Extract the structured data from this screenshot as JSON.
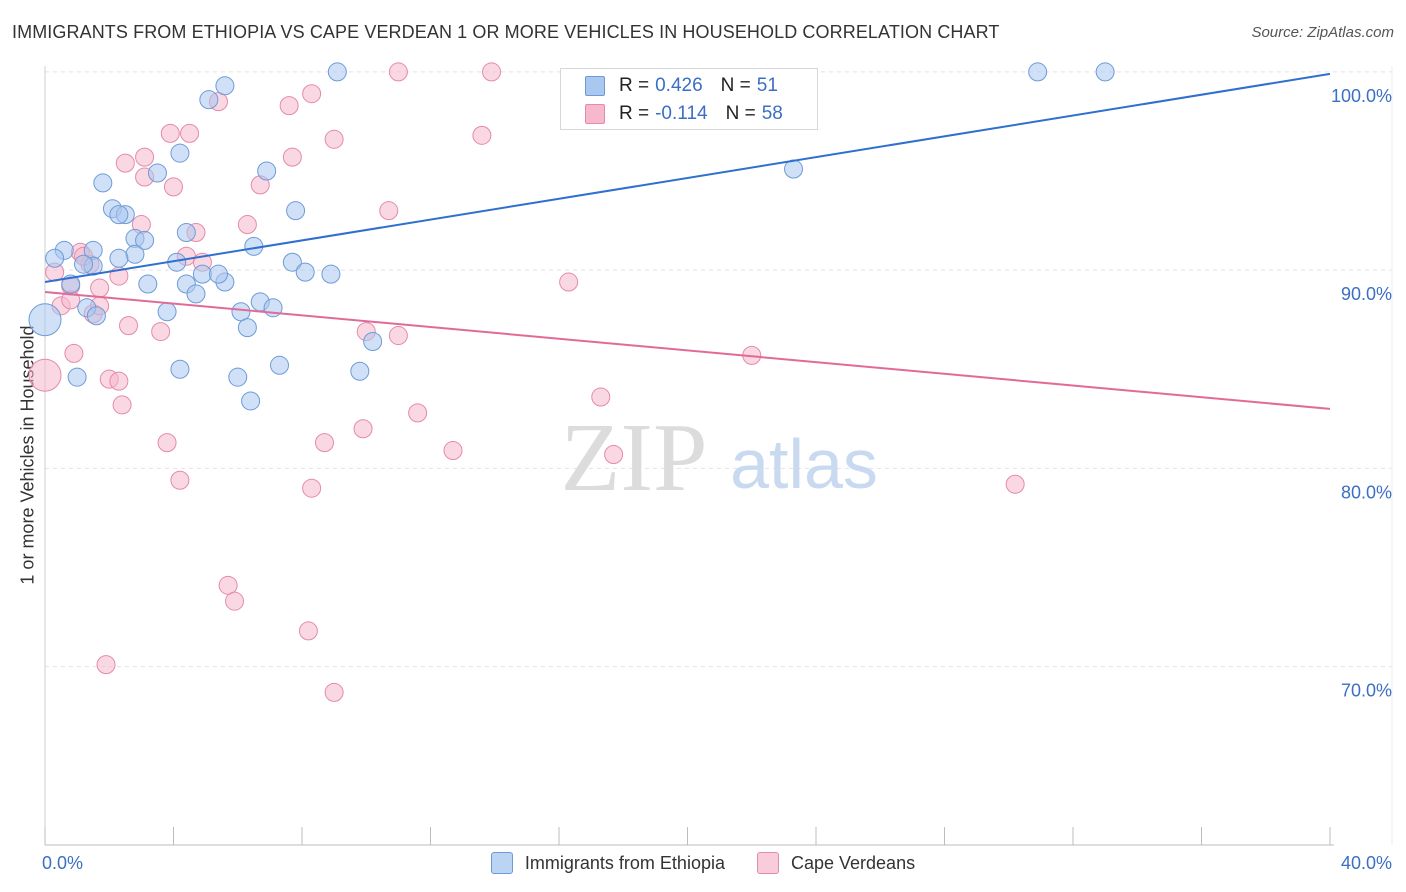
{
  "title": "IMMIGRANTS FROM ETHIOPIA VS CAPE VERDEAN 1 OR MORE VEHICLES IN HOUSEHOLD CORRELATION CHART",
  "source": "Source: ZipAtlas.com",
  "watermark": {
    "zip": "ZIP",
    "atlas": "atlas"
  },
  "colors": {
    "blue_fill": "#a9c7ef",
    "blue_stroke": "#6e9bd8",
    "blue_line": "#2f6fcf",
    "pink_fill": "#f5b8cc",
    "pink_stroke": "#e58aaa",
    "pink_line": "#e06b98",
    "axis_text": "#3b6fc4",
    "grid": "#e2e2e2"
  },
  "stats": {
    "r_label": "R =",
    "n_label": "N =",
    "blue": {
      "r": "0.426",
      "n": "51"
    },
    "pink": {
      "r": "-0.114",
      "n": "58"
    }
  },
  "legend": {
    "blue": "Immigrants from Ethiopia",
    "pink": "Cape Verdeans"
  },
  "chart_data": {
    "type": "scatter",
    "title": "IMMIGRANTS FROM ETHIOPIA VS CAPE VERDEAN 1 OR MORE VEHICLES IN HOUSEHOLD CORRELATION CHART",
    "xlabel": "",
    "ylabel": "1 or more Vehicles in Household",
    "xlim": [
      0,
      40
    ],
    "ylim": [
      61,
      100.5
    ],
    "x_tick_labels": [
      "0.0%",
      "40.0%"
    ],
    "y_ticks": [
      100,
      90,
      80,
      70
    ],
    "y_tick_labels": [
      "100.0%",
      "90.0%",
      "80.0%",
      "70.0%"
    ],
    "grid": true,
    "legend_position": "bottom-center",
    "series": [
      {
        "name": "Immigrants from Ethiopia",
        "color": "#a9c7ef",
        "trend": {
          "x": [
            0,
            40
          ],
          "y": [
            89.4,
            99.9
          ]
        },
        "points": [
          [
            0.6,
            91.0
          ],
          [
            0.3,
            90.6
          ],
          [
            1.5,
            91.0
          ],
          [
            1.5,
            90.2
          ],
          [
            1.2,
            90.3
          ],
          [
            0.8,
            89.3
          ],
          [
            0,
            87.5
          ],
          [
            1.3,
            88.1
          ],
          [
            1.6,
            87.7
          ],
          [
            1.0,
            84.6
          ],
          [
            1.8,
            94.4
          ],
          [
            2.1,
            93.1
          ],
          [
            2.5,
            92.8
          ],
          [
            2.3,
            92.8
          ],
          [
            2.8,
            91.6
          ],
          [
            3.1,
            91.5
          ],
          [
            2.8,
            90.8
          ],
          [
            2.3,
            90.6
          ],
          [
            3.2,
            89.3
          ],
          [
            3.5,
            94.9
          ],
          [
            4.2,
            95.9
          ],
          [
            4.1,
            90.4
          ],
          [
            4.4,
            91.9
          ],
          [
            4.9,
            89.8
          ],
          [
            4.4,
            89.3
          ],
          [
            4.7,
            88.8
          ],
          [
            3.8,
            87.9
          ],
          [
            5.1,
            98.6
          ],
          [
            5.6,
            99.3
          ],
          [
            5.6,
            89.4
          ],
          [
            5.4,
            89.8
          ],
          [
            6.1,
            87.9
          ],
          [
            6.5,
            91.2
          ],
          [
            6.9,
            95.0
          ],
          [
            6.7,
            88.4
          ],
          [
            7.1,
            88.1
          ],
          [
            7.7,
            90.4
          ],
          [
            8.1,
            89.9
          ],
          [
            7.8,
            93.0
          ],
          [
            8.9,
            89.8
          ],
          [
            9.1,
            100.0
          ],
          [
            6.3,
            87.1
          ],
          [
            6.0,
            84.6
          ],
          [
            6.4,
            83.4
          ],
          [
            7.3,
            85.2
          ],
          [
            9.8,
            84.9
          ],
          [
            10.2,
            86.4
          ],
          [
            23.3,
            95.1
          ],
          [
            30.9,
            100.0
          ],
          [
            33.0,
            100.0
          ],
          [
            4.2,
            85.0
          ]
        ]
      },
      {
        "name": "Cape Verdeans",
        "color": "#f5b8cc",
        "trend": {
          "x": [
            0,
            40
          ],
          "y": [
            88.9,
            83.0
          ]
        },
        "points": [
          [
            0,
            84.7
          ],
          [
            0.5,
            88.2
          ],
          [
            0.8,
            89.2
          ],
          [
            0.8,
            88.5
          ],
          [
            1.1,
            90.9
          ],
          [
            1.4,
            90.3
          ],
          [
            1.2,
            90.7
          ],
          [
            1.5,
            87.8
          ],
          [
            1.7,
            89.1
          ],
          [
            1.7,
            88.2
          ],
          [
            0.9,
            85.8
          ],
          [
            2.0,
            84.5
          ],
          [
            2.3,
            84.4
          ],
          [
            2.4,
            83.2
          ],
          [
            2.6,
            87.2
          ],
          [
            2.3,
            89.7
          ],
          [
            2.5,
            95.4
          ],
          [
            3.1,
            94.7
          ],
          [
            3.1,
            95.7
          ],
          [
            3.0,
            92.3
          ],
          [
            3.6,
            86.9
          ],
          [
            3.9,
            96.9
          ],
          [
            4.0,
            94.2
          ],
          [
            4.5,
            96.9
          ],
          [
            4.7,
            91.9
          ],
          [
            4.4,
            90.7
          ],
          [
            4.9,
            90.4
          ],
          [
            3.8,
            81.3
          ],
          [
            4.2,
            79.4
          ],
          [
            5.4,
            98.5
          ],
          [
            6.3,
            92.3
          ],
          [
            6.7,
            94.3
          ],
          [
            7.6,
            98.3
          ],
          [
            7.7,
            95.7
          ],
          [
            8.3,
            98.9
          ],
          [
            9.0,
            96.6
          ],
          [
            8.7,
            81.3
          ],
          [
            8.3,
            79.0
          ],
          [
            8.2,
            71.8
          ],
          [
            9.0,
            68.7
          ],
          [
            5.7,
            74.1
          ],
          [
            5.9,
            73.3
          ],
          [
            1.9,
            70.1
          ],
          [
            10.0,
            86.9
          ],
          [
            11.0,
            86.7
          ],
          [
            11.0,
            100.0
          ],
          [
            10.7,
            93.0
          ],
          [
            9.9,
            82.0
          ],
          [
            11.6,
            82.8
          ],
          [
            12.7,
            80.9
          ],
          [
            13.6,
            96.8
          ],
          [
            13.9,
            100.0
          ],
          [
            16.3,
            89.4
          ],
          [
            17.3,
            83.6
          ],
          [
            17.7,
            80.7
          ],
          [
            22.0,
            85.7
          ],
          [
            30.2,
            79.2
          ],
          [
            0.3,
            89.9
          ]
        ]
      }
    ]
  }
}
